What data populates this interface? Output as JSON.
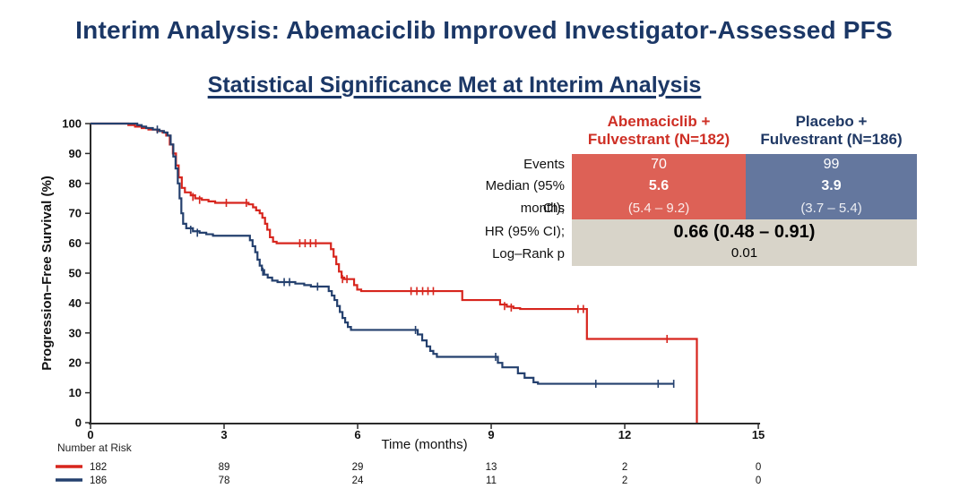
{
  "title": "Interim Analysis: Abemaciclib Improved Investigator-Assessed PFS",
  "subtitle": "Statistical Significance Met at Interim Analysis",
  "colors": {
    "title_navy": "#1b3766",
    "red_line": "#d7251d",
    "blue_line": "#24406e",
    "red_fill": "#dd6156",
    "blue_fill": "#64779e",
    "gray_fill": "#d8d4c9",
    "axis": "#2b2b2b"
  },
  "summary_table": {
    "col1": {
      "line1": "Abemaciclib +",
      "line2": "Fulvestrant (N=182)"
    },
    "col2": {
      "line1": "Placebo +",
      "line2": "Fulvestrant (N=186)"
    },
    "labels": {
      "events": "Events",
      "median": "Median (95% CI);",
      "months": "months",
      "hr": "HR (95% CI);",
      "logrank": "Log–Rank p"
    },
    "abemaciclib": {
      "events": "70",
      "median": "5.6",
      "ci": "(5.4 – 9.2)"
    },
    "placebo": {
      "events": "99",
      "median": "3.9",
      "ci": "(3.7 – 5.4)"
    },
    "hr_value": "0.66 (0.48 – 0.91)",
    "p_value": "0.01"
  },
  "chart_data": {
    "type": "line",
    "subtype": "kaplan-meier-step",
    "xlabel": "Time (months)",
    "ylabel": "Progression–Free Survival (%)",
    "xlim": [
      0,
      15
    ],
    "ylim": [
      0,
      100
    ],
    "xticks": [
      0,
      3,
      6,
      9,
      12,
      15
    ],
    "yticks": [
      0,
      10,
      20,
      30,
      40,
      50,
      60,
      70,
      80,
      90,
      100
    ],
    "grid": false,
    "risk_label": "Number at Risk",
    "risk_times": [
      0,
      3,
      6,
      9,
      12,
      15
    ],
    "series": [
      {
        "name": "Abemaciclib + Fulvestrant",
        "n": 182,
        "color": "#d7251d",
        "median_months": 5.6,
        "risk": [
          "182",
          "89",
          "29",
          "13",
          "2",
          "0"
        ],
        "steps": [
          [
            0,
            100
          ],
          [
            0.85,
            99.5
          ],
          [
            1.0,
            99
          ],
          [
            1.15,
            98.5
          ],
          [
            1.3,
            98
          ],
          [
            1.5,
            97.5
          ],
          [
            1.62,
            97
          ],
          [
            1.7,
            96
          ],
          [
            1.78,
            93
          ],
          [
            1.85,
            90
          ],
          [
            1.92,
            86
          ],
          [
            1.98,
            82
          ],
          [
            2.05,
            78.5
          ],
          [
            2.12,
            77
          ],
          [
            2.25,
            76
          ],
          [
            2.35,
            75
          ],
          [
            2.5,
            74.5
          ],
          [
            2.65,
            74
          ],
          [
            2.8,
            73.5
          ],
          [
            3.55,
            73
          ],
          [
            3.65,
            72
          ],
          [
            3.72,
            71
          ],
          [
            3.8,
            70
          ],
          [
            3.86,
            68.5
          ],
          [
            3.92,
            66.5
          ],
          [
            3.97,
            64.5
          ],
          [
            4.03,
            62
          ],
          [
            4.1,
            60.5
          ],
          [
            4.18,
            60
          ],
          [
            5.4,
            58
          ],
          [
            5.46,
            55.5
          ],
          [
            5.52,
            53
          ],
          [
            5.58,
            50.5
          ],
          [
            5.64,
            48.5
          ],
          [
            5.7,
            48
          ],
          [
            5.92,
            46
          ],
          [
            5.99,
            44.5
          ],
          [
            6.08,
            44
          ],
          [
            8.35,
            41
          ],
          [
            9.2,
            39.5
          ],
          [
            9.35,
            38.8
          ],
          [
            9.5,
            38.3
          ],
          [
            9.65,
            38
          ],
          [
            11.15,
            28
          ],
          [
            13.62,
            0
          ]
        ],
        "censors": [
          [
            2.3,
            75.5
          ],
          [
            2.45,
            74.5
          ],
          [
            3.05,
            73.5
          ],
          [
            3.5,
            73.5
          ],
          [
            4.7,
            60
          ],
          [
            4.82,
            60
          ],
          [
            4.94,
            60
          ],
          [
            5.06,
            60
          ],
          [
            5.66,
            48
          ],
          [
            5.76,
            48
          ],
          [
            7.2,
            44
          ],
          [
            7.33,
            44
          ],
          [
            7.46,
            44
          ],
          [
            7.58,
            44
          ],
          [
            7.7,
            44
          ],
          [
            9.3,
            39
          ],
          [
            9.45,
            38.5
          ],
          [
            10.95,
            38
          ],
          [
            11.07,
            38
          ],
          [
            12.95,
            28
          ]
        ]
      },
      {
        "name": "Placebo + Fulvestrant",
        "n": 186,
        "color": "#24406e",
        "median_months": 3.9,
        "risk": [
          "186",
          "78",
          "24",
          "11",
          "2",
          "0"
        ],
        "steps": [
          [
            0,
            100
          ],
          [
            1.05,
            99.5
          ],
          [
            1.15,
            99
          ],
          [
            1.25,
            98.5
          ],
          [
            1.4,
            98
          ],
          [
            1.55,
            97.5
          ],
          [
            1.65,
            97
          ],
          [
            1.73,
            96
          ],
          [
            1.8,
            93
          ],
          [
            1.86,
            89
          ],
          [
            1.91,
            85
          ],
          [
            1.96,
            80
          ],
          [
            2.0,
            75
          ],
          [
            2.04,
            70
          ],
          [
            2.08,
            66.5
          ],
          [
            2.15,
            65
          ],
          [
            2.3,
            64
          ],
          [
            2.45,
            63.5
          ],
          [
            2.6,
            63
          ],
          [
            2.75,
            62.5
          ],
          [
            3.58,
            61
          ],
          [
            3.64,
            59
          ],
          [
            3.7,
            57
          ],
          [
            3.75,
            54.5
          ],
          [
            3.8,
            52.5
          ],
          [
            3.85,
            51
          ],
          [
            3.9,
            49.5
          ],
          [
            3.98,
            48.5
          ],
          [
            4.08,
            47.5
          ],
          [
            4.2,
            47
          ],
          [
            4.6,
            46.5
          ],
          [
            4.8,
            46
          ],
          [
            4.95,
            45.5
          ],
          [
            5.35,
            44
          ],
          [
            5.42,
            42.5
          ],
          [
            5.48,
            41
          ],
          [
            5.54,
            39
          ],
          [
            5.6,
            37
          ],
          [
            5.66,
            35
          ],
          [
            5.72,
            33.5
          ],
          [
            5.78,
            32
          ],
          [
            5.85,
            31
          ],
          [
            7.35,
            29.5
          ],
          [
            7.45,
            27.5
          ],
          [
            7.55,
            25.5
          ],
          [
            7.63,
            24
          ],
          [
            7.7,
            23
          ],
          [
            7.78,
            22
          ],
          [
            9.15,
            20
          ],
          [
            9.25,
            18.5
          ],
          [
            9.6,
            16.5
          ],
          [
            9.75,
            15
          ],
          [
            9.95,
            13.5
          ],
          [
            10.05,
            13
          ],
          [
            13.1,
            13
          ]
        ],
        "censors": [
          [
            1.5,
            98
          ],
          [
            2.25,
            64.5
          ],
          [
            2.4,
            63.5
          ],
          [
            3.87,
            50.5
          ],
          [
            4.35,
            47
          ],
          [
            4.47,
            47
          ],
          [
            5.1,
            45.5
          ],
          [
            7.3,
            31
          ],
          [
            9.1,
            22
          ],
          [
            11.35,
            13
          ],
          [
            12.75,
            13
          ],
          [
            13.1,
            13
          ]
        ]
      }
    ]
  }
}
